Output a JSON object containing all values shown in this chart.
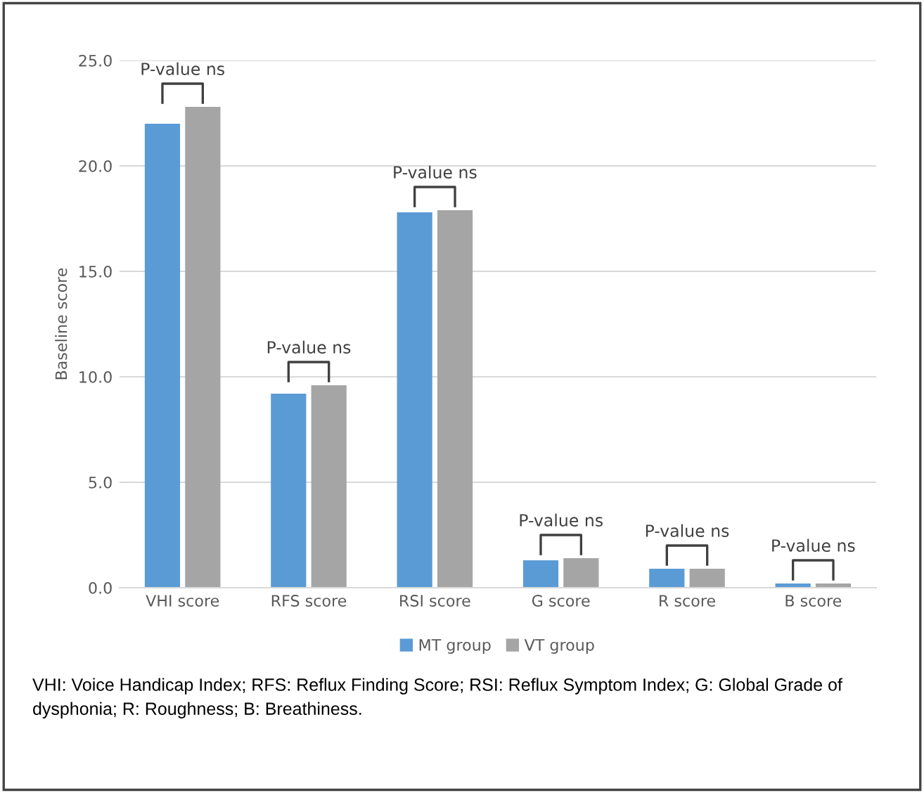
{
  "chart_data": {
    "type": "bar",
    "ylabel": "Baseline score",
    "categories": [
      "VHI score",
      "RFS score",
      "RSI score",
      "G score",
      "R score",
      "B score"
    ],
    "series": [
      {
        "name": "MT group",
        "color": "#5b9bd5",
        "values": [
          22.0,
          9.2,
          17.8,
          1.3,
          0.9,
          0.2
        ]
      },
      {
        "name": "VT group",
        "color": "#a5a5a5",
        "values": [
          22.8,
          9.6,
          17.9,
          1.4,
          0.9,
          0.2
        ]
      }
    ],
    "ylim": [
      0,
      25
    ],
    "yticks": [
      {
        "value": 0,
        "label": "0.0"
      },
      {
        "value": 5,
        "label": "5.0"
      },
      {
        "value": 10,
        "label": "10.0"
      },
      {
        "value": 15,
        "label": "15.0"
      },
      {
        "value": 20,
        "label": "20.0"
      },
      {
        "value": 25,
        "label": "25.0"
      }
    ],
    "grid": "y",
    "legend": "bottom",
    "annotations": [
      "P-value ns",
      "P-value ns",
      "P-value ns",
      "P-value ns",
      "P-value ns",
      "P-value ns",
      "VHI: Voice Handicap Index; RFS: Reflux Finding Score; RSI: Reflux Symptom Index; G: Global Grade of dysphonia; R: Roughness; B: Breathiness."
    ]
  }
}
